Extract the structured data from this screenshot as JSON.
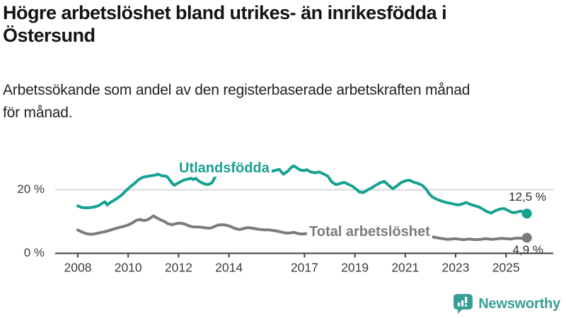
{
  "header": {
    "title": "Högre arbetslöshet bland utrikes- än inrikesfödda i\nÖstersund",
    "subtitle": "Arbetssökande som andel av den registerbaserade arbetskraften månad\nför månad."
  },
  "chart_data": {
    "type": "line",
    "unit": "%",
    "grid": "single horizontal gridline at 20 %, x-axis baseline at 0 %",
    "legend_position": "labels placed inline on the lines",
    "x_axis": {
      "range": [
        2008,
        2026
      ],
      "tick_years": [
        2008,
        2010,
        2012,
        2014,
        2017,
        2019,
        2021,
        2023,
        2025
      ],
      "tick_labels": [
        "2008",
        "2010",
        "2012",
        "2014",
        "2017",
        "2019",
        "2021",
        "2023",
        "2025"
      ]
    },
    "y_axis": {
      "range": [
        0,
        30
      ],
      "ticks": [
        {
          "value": 0,
          "label": "0 %"
        },
        {
          "value": 20,
          "label": "20 %"
        }
      ],
      "grid_values": [
        20
      ]
    },
    "series": [
      {
        "name": "Utlandsfödda",
        "color": "#16a191",
        "end_value": 12.5,
        "end_label": "12,5 %",
        "points": [
          [
            2008.0,
            14.9
          ],
          [
            2008.17,
            14.4
          ],
          [
            2008.33,
            14.3
          ],
          [
            2008.5,
            14.4
          ],
          [
            2008.67,
            14.6
          ],
          [
            2008.83,
            15.0
          ],
          [
            2009.0,
            15.9
          ],
          [
            2009.08,
            16.2
          ],
          [
            2009.17,
            15.2
          ],
          [
            2009.25,
            15.8
          ],
          [
            2009.42,
            16.6
          ],
          [
            2009.58,
            17.4
          ],
          [
            2009.75,
            18.4
          ],
          [
            2009.92,
            19.8
          ],
          [
            2010.08,
            20.9
          ],
          [
            2010.25,
            22.0
          ],
          [
            2010.42,
            23.2
          ],
          [
            2010.58,
            23.9
          ],
          [
            2010.75,
            24.2
          ],
          [
            2010.92,
            24.4
          ],
          [
            2011.08,
            24.6
          ],
          [
            2011.17,
            24.9
          ],
          [
            2011.33,
            24.4
          ],
          [
            2011.5,
            24.3
          ],
          [
            2011.58,
            23.8
          ],
          [
            2011.75,
            22.0
          ],
          [
            2011.83,
            21.4
          ],
          [
            2012.0,
            22.2
          ],
          [
            2012.17,
            22.9
          ],
          [
            2012.33,
            23.3
          ],
          [
            2012.5,
            23.6
          ],
          [
            2012.58,
            23.2
          ],
          [
            2012.67,
            23.6
          ],
          [
            2012.83,
            22.6
          ],
          [
            2013.0,
            21.9
          ],
          [
            2013.17,
            21.6
          ],
          [
            2013.33,
            22.2
          ],
          [
            2013.42,
            23.6
          ],
          [
            2013.5,
            24.7
          ],
          [
            2013.75,
            25.1
          ],
          [
            2014.0,
            25.3
          ],
          [
            2014.25,
            24.9
          ],
          [
            2014.5,
            24.7
          ],
          [
            2014.75,
            25.0
          ],
          [
            2015.0,
            25.2
          ],
          [
            2015.25,
            25.0
          ],
          [
            2015.5,
            25.4
          ],
          [
            2015.75,
            25.9
          ],
          [
            2016.0,
            26.4
          ],
          [
            2016.08,
            25.6
          ],
          [
            2016.17,
            24.9
          ],
          [
            2016.33,
            25.8
          ],
          [
            2016.5,
            27.2
          ],
          [
            2016.58,
            27.5
          ],
          [
            2016.67,
            27.0
          ],
          [
            2016.83,
            26.2
          ],
          [
            2017.0,
            26.0
          ],
          [
            2017.08,
            26.3
          ],
          [
            2017.25,
            25.6
          ],
          [
            2017.42,
            25.3
          ],
          [
            2017.58,
            25.6
          ],
          [
            2017.75,
            25.0
          ],
          [
            2017.92,
            24.3
          ],
          [
            2018.08,
            22.5
          ],
          [
            2018.25,
            21.6
          ],
          [
            2018.42,
            22.0
          ],
          [
            2018.58,
            22.3
          ],
          [
            2018.75,
            21.7
          ],
          [
            2018.92,
            21.0
          ],
          [
            2019.08,
            20.0
          ],
          [
            2019.17,
            19.3
          ],
          [
            2019.33,
            19.1
          ],
          [
            2019.5,
            19.9
          ],
          [
            2019.67,
            20.6
          ],
          [
            2019.83,
            21.4
          ],
          [
            2020.0,
            22.2
          ],
          [
            2020.17,
            22.6
          ],
          [
            2020.33,
            21.5
          ],
          [
            2020.5,
            20.3
          ],
          [
            2020.67,
            21.2
          ],
          [
            2020.83,
            22.2
          ],
          [
            2021.0,
            22.8
          ],
          [
            2021.17,
            23.0
          ],
          [
            2021.33,
            22.4
          ],
          [
            2021.5,
            22.0
          ],
          [
            2021.67,
            21.4
          ],
          [
            2021.83,
            20.2
          ],
          [
            2021.92,
            19.0
          ],
          [
            2022.08,
            17.7
          ],
          [
            2022.25,
            17.0
          ],
          [
            2022.42,
            16.5
          ],
          [
            2022.58,
            16.1
          ],
          [
            2022.75,
            15.8
          ],
          [
            2022.92,
            15.5
          ],
          [
            2023.08,
            15.2
          ],
          [
            2023.25,
            15.5
          ],
          [
            2023.42,
            16.0
          ],
          [
            2023.58,
            15.4
          ],
          [
            2023.75,
            15.0
          ],
          [
            2023.92,
            14.6
          ],
          [
            2024.08,
            13.9
          ],
          [
            2024.25,
            13.1
          ],
          [
            2024.42,
            12.7
          ],
          [
            2024.58,
            13.4
          ],
          [
            2024.75,
            13.9
          ],
          [
            2024.92,
            14.1
          ],
          [
            2025.08,
            13.5
          ],
          [
            2025.25,
            12.8
          ],
          [
            2025.42,
            12.9
          ],
          [
            2025.58,
            13.3
          ],
          [
            2025.75,
            12.8
          ],
          [
            2025.83,
            12.5
          ]
        ]
      },
      {
        "name": "Total arbetslöshet",
        "color": "#7b7b7b",
        "end_value": 4.9,
        "end_label": "4,9 %",
        "points": [
          [
            2008.0,
            7.3
          ],
          [
            2008.17,
            6.7
          ],
          [
            2008.33,
            6.2
          ],
          [
            2008.5,
            6.0
          ],
          [
            2008.67,
            6.1
          ],
          [
            2008.83,
            6.4
          ],
          [
            2009.0,
            6.7
          ],
          [
            2009.17,
            7.0
          ],
          [
            2009.33,
            7.4
          ],
          [
            2009.5,
            7.8
          ],
          [
            2009.67,
            8.2
          ],
          [
            2009.83,
            8.5
          ],
          [
            2010.0,
            8.9
          ],
          [
            2010.17,
            9.6
          ],
          [
            2010.33,
            10.4
          ],
          [
            2010.5,
            10.7
          ],
          [
            2010.58,
            10.3
          ],
          [
            2010.75,
            10.5
          ],
          [
            2010.92,
            11.3
          ],
          [
            2011.0,
            11.8
          ],
          [
            2011.08,
            11.4
          ],
          [
            2011.25,
            10.7
          ],
          [
            2011.42,
            10.1
          ],
          [
            2011.58,
            9.3
          ],
          [
            2011.75,
            9.0
          ],
          [
            2011.92,
            9.4
          ],
          [
            2012.08,
            9.5
          ],
          [
            2012.25,
            9.2
          ],
          [
            2012.42,
            8.6
          ],
          [
            2012.58,
            8.3
          ],
          [
            2012.75,
            8.3
          ],
          [
            2012.92,
            8.2
          ],
          [
            2013.08,
            8.0
          ],
          [
            2013.25,
            7.9
          ],
          [
            2013.42,
            8.4
          ],
          [
            2013.58,
            8.9
          ],
          [
            2013.75,
            9.0
          ],
          [
            2013.92,
            8.8
          ],
          [
            2014.08,
            8.4
          ],
          [
            2014.25,
            7.8
          ],
          [
            2014.42,
            7.5
          ],
          [
            2014.58,
            7.8
          ],
          [
            2014.75,
            8.1
          ],
          [
            2014.92,
            7.9
          ],
          [
            2015.08,
            7.7
          ],
          [
            2015.25,
            7.5
          ],
          [
            2015.42,
            7.4
          ],
          [
            2015.58,
            7.4
          ],
          [
            2015.75,
            7.2
          ],
          [
            2015.92,
            7.0
          ],
          [
            2016.08,
            6.7
          ],
          [
            2016.25,
            6.4
          ],
          [
            2016.42,
            6.4
          ],
          [
            2016.58,
            6.6
          ],
          [
            2016.75,
            6.2
          ],
          [
            2016.92,
            6.1
          ],
          [
            2017.08,
            6.2
          ],
          [
            2017.5,
            5.8
          ],
          [
            2018.0,
            5.4
          ],
          [
            2018.5,
            5.2
          ],
          [
            2019.0,
            5.0
          ],
          [
            2019.5,
            4.8
          ],
          [
            2020.0,
            5.5
          ],
          [
            2020.33,
            7.0
          ],
          [
            2020.67,
            7.3
          ],
          [
            2021.0,
            6.8
          ],
          [
            2021.5,
            6.0
          ],
          [
            2022.0,
            5.3
          ],
          [
            2022.33,
            4.8
          ],
          [
            2022.5,
            4.6
          ],
          [
            2022.67,
            4.4
          ],
          [
            2022.83,
            4.5
          ],
          [
            2023.0,
            4.6
          ],
          [
            2023.17,
            4.4
          ],
          [
            2023.33,
            4.3
          ],
          [
            2023.5,
            4.5
          ],
          [
            2023.67,
            4.4
          ],
          [
            2023.83,
            4.3
          ],
          [
            2024.0,
            4.4
          ],
          [
            2024.17,
            4.6
          ],
          [
            2024.33,
            4.5
          ],
          [
            2024.5,
            4.4
          ],
          [
            2024.67,
            4.6
          ],
          [
            2024.83,
            4.7
          ],
          [
            2025.0,
            4.6
          ],
          [
            2025.17,
            4.5
          ],
          [
            2025.33,
            4.7
          ],
          [
            2025.5,
            4.8
          ],
          [
            2025.67,
            4.7
          ],
          [
            2025.83,
            4.9
          ]
        ]
      }
    ],
    "colors": {
      "gridline": "#d9d9d9",
      "axis": "#404040",
      "tick_text": "#3c3c3c"
    }
  },
  "branding": {
    "logo_text": "Newsworthy",
    "logo_color": "#389e95",
    "logo_icon": "bar-chart-speech-bubble-icon"
  }
}
